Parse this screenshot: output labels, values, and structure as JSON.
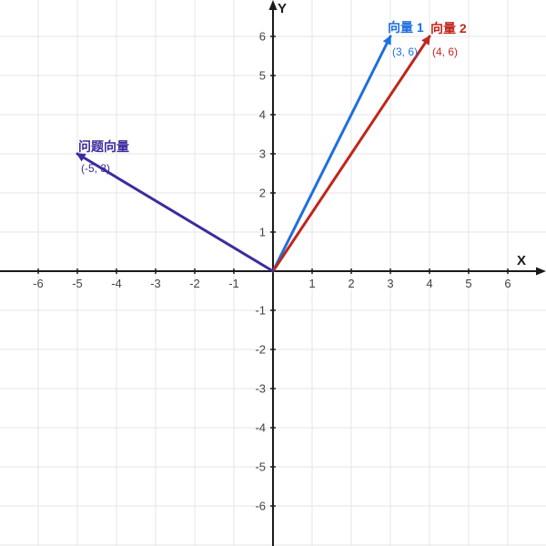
{
  "chart_data": {
    "type": "vector-plot",
    "title": "",
    "xlabel": "X",
    "ylabel": "Y",
    "xlim": [
      -7,
      7
    ],
    "ylim": [
      -7,
      7
    ],
    "grid": true,
    "tick_step": 1,
    "x_ticks": [
      -6,
      -5,
      -4,
      -3,
      -2,
      -1,
      1,
      2,
      3,
      4,
      5,
      6
    ],
    "y_ticks": [
      -6,
      -5,
      -4,
      -3,
      -2,
      -1,
      1,
      2,
      3,
      4,
      5,
      6
    ],
    "vectors": [
      {
        "id": "vector-1",
        "label": "向量 1",
        "coord_label": "(3, 6)",
        "x": 3,
        "y": 6,
        "color": "#1e6fe0",
        "label_offset": [
          -3,
          -5
        ],
        "coord_offset": [
          2,
          21
        ]
      },
      {
        "id": "vector-2",
        "label": "向量 2",
        "coord_label": "(4, 6)",
        "x": 4,
        "y": 6,
        "color": "#c0261c",
        "label_offset": [
          1,
          -4
        ],
        "coord_offset": [
          3,
          21
        ]
      },
      {
        "id": "problem-vector",
        "label": "问题向量",
        "coord_label": "(-5, 3)",
        "x": -5,
        "y": 3,
        "color": "#3d2b9e",
        "label_offset": [
          1,
          -3
        ],
        "coord_offset": [
          4,
          20
        ]
      }
    ]
  },
  "colors": {
    "background": "#ffffff",
    "grid": "#e5e5e5",
    "axis": "#1a1a1a",
    "tick_text": "#444444"
  }
}
